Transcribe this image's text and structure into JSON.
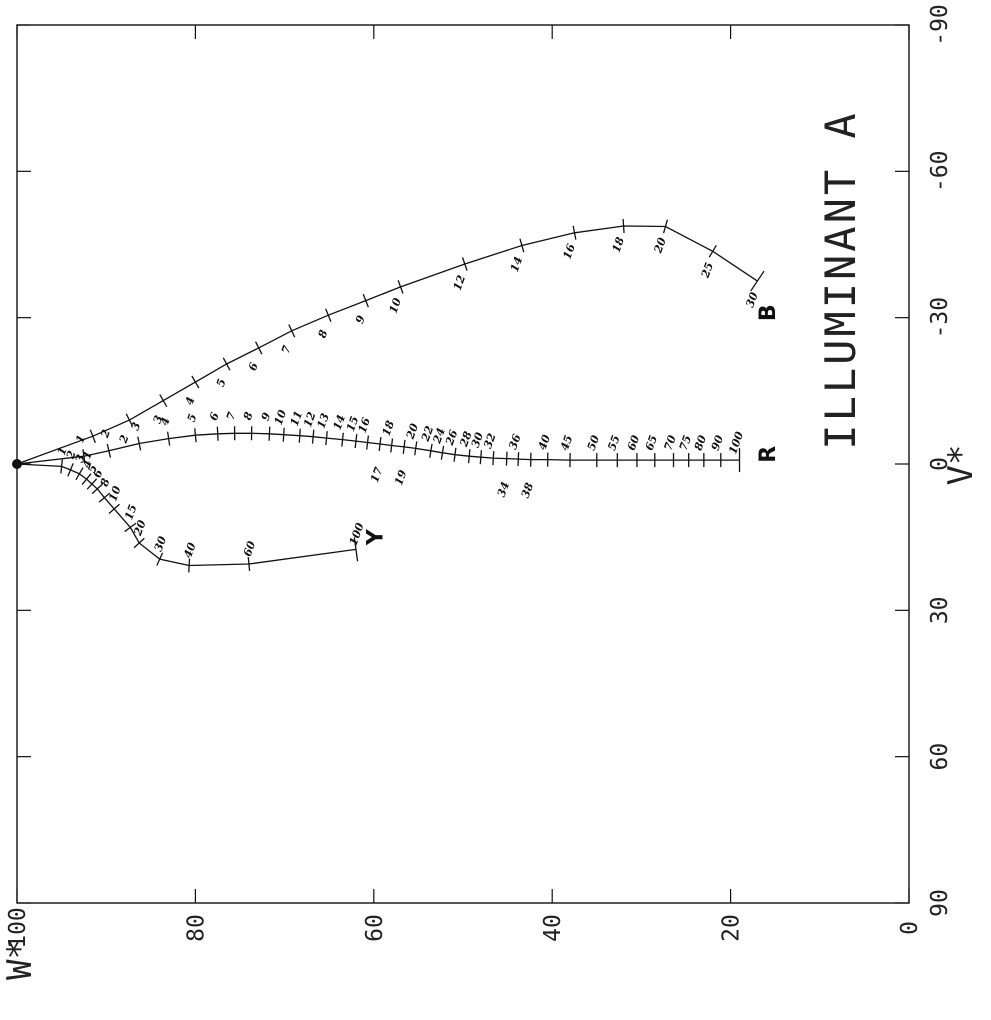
{
  "chart_data": {
    "type": "line",
    "title": "ILLUMINANT A",
    "xlabel": "V*",
    "ylabel": "W*",
    "xlim": [
      -90,
      90
    ],
    "ylim": [
      0,
      100
    ],
    "x_ticks": [
      "-90",
      "-60",
      "-30",
      "0",
      "30",
      "60",
      "90"
    ],
    "y_ticks": [
      "0",
      "20",
      "40",
      "60",
      "80",
      "100"
    ],
    "origin": {
      "v": 0,
      "w": 100
    },
    "series": [
      {
        "name": "Y",
        "label_at": {
          "v": 15,
          "w": 59
        },
        "points": [
          {
            "label": "1",
            "v": 0.5,
            "w": 95
          },
          {
            "label": "2",
            "v": 1.2,
            "w": 94
          },
          {
            "label": "3",
            "v": 2.0,
            "w": 93
          },
          {
            "label": "4",
            "v": 3.1,
            "w": 92.2
          },
          {
            "label": "5",
            "v": 4.1,
            "w": 91.6
          },
          {
            "label": "6",
            "v": 5.1,
            "w": 91.0
          },
          {
            "label": "8",
            "v": 6.9,
            "w": 90.2
          },
          {
            "label": "10",
            "v": 9.2,
            "w": 89.1
          },
          {
            "label": "15",
            "v": 13.0,
            "w": 87.3
          },
          {
            "label": "20",
            "v": 16.2,
            "w": 86.3
          },
          {
            "label": "30",
            "v": 19.5,
            "w": 84.0
          },
          {
            "label": "40",
            "v": 20.8,
            "w": 80.7
          },
          {
            "label": "60",
            "v": 20.5,
            "w": 74.0
          },
          {
            "label": "100",
            "v": 17.5,
            "w": 62.0
          }
        ]
      },
      {
        "name": "R",
        "label_at": {
          "v": -2,
          "w": 15
        },
        "points": [
          {
            "label": "1",
            "v": -1.6,
            "w": 92.5
          },
          {
            "label": "2",
            "v": -2.7,
            "w": 89.7
          },
          {
            "label": "3",
            "v": -4.2,
            "w": 86.3
          },
          {
            "label": "4",
            "v": -5.2,
            "w": 83.0
          },
          {
            "label": "5",
            "v": -5.9,
            "w": 80.0
          },
          {
            "label": "6",
            "v": -6.2,
            "w": 77.5
          },
          {
            "label": "7",
            "v": -6.3,
            "w": 75.6
          },
          {
            "label": "8",
            "v": -6.3,
            "w": 73.7
          },
          {
            "label": "9",
            "v": -6.2,
            "w": 71.7
          },
          {
            "label": "10",
            "v": -6.0,
            "w": 70.1
          },
          {
            "label": "11",
            "v": -5.8,
            "w": 68.3
          },
          {
            "label": "12",
            "v": -5.6,
            "w": 66.8
          },
          {
            "label": "13",
            "v": -5.3,
            "w": 65.3
          },
          {
            "label": "14",
            "v": -5.0,
            "w": 63.5
          },
          {
            "label": "15",
            "v": -4.7,
            "w": 62.0
          },
          {
            "label": "16",
            "v": -4.4,
            "w": 60.7
          },
          {
            "label": "17",
            "v": -4.1,
            "w": 59.3
          },
          {
            "label": "18",
            "v": -3.8,
            "w": 58.0
          },
          {
            "label": "19",
            "v": -3.5,
            "w": 56.6
          },
          {
            "label": "20",
            "v": -3.2,
            "w": 55.3
          },
          {
            "label": "22",
            "v": -2.7,
            "w": 53.6
          },
          {
            "label": "24",
            "v": -2.3,
            "w": 52.3
          },
          {
            "label": "26",
            "v": -1.9,
            "w": 50.9
          },
          {
            "label": "28",
            "v": -1.6,
            "w": 49.3
          },
          {
            "label": "30",
            "v": -1.4,
            "w": 48.0
          },
          {
            "label": "32",
            "v": -1.2,
            "w": 46.6
          },
          {
            "label": "34",
            "v": -1.1,
            "w": 45.1
          },
          {
            "label": "36",
            "v": -1.0,
            "w": 43.8
          },
          {
            "label": "38",
            "v": -0.9,
            "w": 42.4
          },
          {
            "label": "40",
            "v": -0.9,
            "w": 40.5
          },
          {
            "label": "45",
            "v": -0.8,
            "w": 38.0
          },
          {
            "label": "50",
            "v": -0.8,
            "w": 35.0
          },
          {
            "label": "55",
            "v": -0.8,
            "w": 32.7
          },
          {
            "label": "60",
            "v": -0.8,
            "w": 30.5
          },
          {
            "label": "65",
            "v": -0.8,
            "w": 28.5
          },
          {
            "label": "70",
            "v": -0.8,
            "w": 26.4
          },
          {
            "label": "75",
            "v": -0.8,
            "w": 24.7
          },
          {
            "label": "80",
            "v": -0.8,
            "w": 23.0
          },
          {
            "label": "90",
            "v": -0.8,
            "w": 21.1
          },
          {
            "label": "100",
            "v": -0.8,
            "w": 19.0
          }
        ]
      },
      {
        "name": "B",
        "label_at": {
          "v": -31,
          "w": 15
        },
        "points": [
          {
            "label": "1",
            "v": -5.7,
            "w": 91.5
          },
          {
            "label": "2",
            "v": -9.0,
            "w": 87.4
          },
          {
            "label": "3",
            "v": -13.0,
            "w": 83.6
          },
          {
            "label": "4",
            "v": -16.8,
            "w": 80.0
          },
          {
            "label": "5",
            "v": -20.5,
            "w": 76.5
          },
          {
            "label": "6",
            "v": -23.8,
            "w": 72.9
          },
          {
            "label": "7",
            "v": -27.3,
            "w": 69.2
          },
          {
            "label": "8",
            "v": -30.5,
            "w": 65.1
          },
          {
            "label": "9",
            "v": -33.5,
            "w": 60.9
          },
          {
            "label": "10",
            "v": -36.3,
            "w": 57.0
          },
          {
            "label": "12",
            "v": -41.0,
            "w": 49.8
          },
          {
            "label": "14",
            "v": -44.8,
            "w": 43.4
          },
          {
            "label": "16",
            "v": -47.4,
            "w": 37.5
          },
          {
            "label": "18",
            "v": -48.8,
            "w": 32.0
          },
          {
            "label": "20",
            "v": -48.7,
            "w": 27.3
          },
          {
            "label": "25",
            "v": -43.6,
            "w": 22.0
          },
          {
            "label": "30",
            "v": -37.5,
            "w": 17.0
          }
        ]
      }
    ]
  }
}
